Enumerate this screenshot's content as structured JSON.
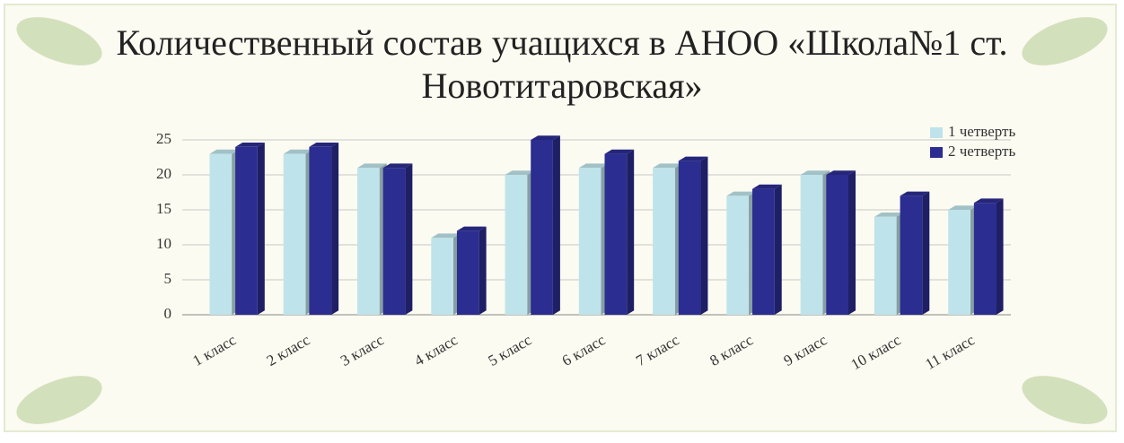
{
  "chart_data": {
    "type": "bar3d",
    "title": "Количественный состав учащихся в АНОО «Школа№1 ст. Новотитаровская»",
    "categories": [
      "1 класс",
      "2 класс",
      "3 класс",
      "4 класс",
      "5 класс",
      "6 класс",
      "7 класс",
      "8 класс",
      "9 класс",
      "10 класс",
      "11 класс"
    ],
    "series": [
      {
        "name": "1 четверть",
        "color": "#bfe3ea",
        "values": [
          23,
          23,
          21,
          11,
          20,
          21,
          21,
          17,
          20,
          14,
          15
        ]
      },
      {
        "name": "2 четверть",
        "color": "#2b2d90",
        "values": [
          24,
          24,
          21,
          12,
          25,
          23,
          22,
          18,
          20,
          17,
          16
        ]
      }
    ],
    "ylim": [
      0,
      25
    ],
    "yticks": [
      0,
      5,
      10,
      15,
      20,
      25
    ],
    "grid": true,
    "legend": "top-right"
  }
}
